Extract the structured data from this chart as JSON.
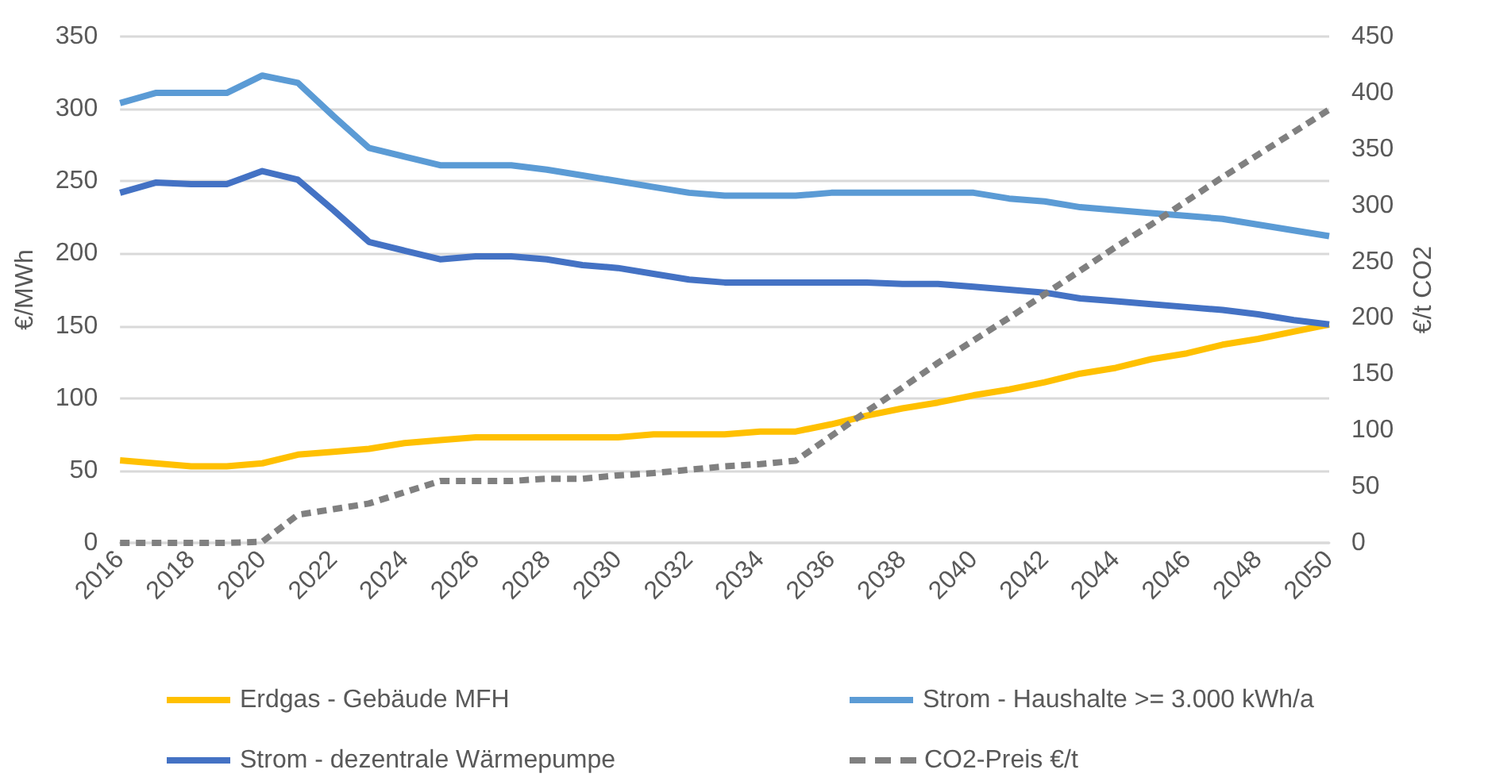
{
  "chart_data": {
    "type": "line",
    "ylabel": "€/MWh",
    "y2label": "€/t CO2",
    "categories": [
      "2016",
      null,
      "2018",
      null,
      "2020",
      null,
      "2022",
      null,
      "2024",
      null,
      "2026",
      null,
      "2028",
      null,
      "2030",
      null,
      "2032",
      null,
      "2034",
      null,
      "2036",
      null,
      "2038",
      null,
      "2040",
      null,
      "2042",
      null,
      "2044",
      null,
      "2046",
      null,
      "2048",
      null,
      "2050"
    ],
    "series": [
      {
        "name": "Erdgas - Gebäude MFH",
        "color": "#ffc000",
        "values": [
          57,
          55,
          53,
          53,
          55,
          61,
          63,
          65,
          69,
          71,
          73,
          73,
          73,
          73,
          73,
          75,
          75,
          75,
          77,
          77,
          82,
          88,
          93,
          97,
          102,
          106,
          111,
          117,
          121,
          127,
          131,
          137,
          141,
          146,
          151
        ]
      },
      {
        "name": "Strom - Haushalte >= 3.000 kWh/a",
        "color": "#5b9bd5",
        "values": [
          304,
          311,
          311,
          311,
          323,
          318,
          295,
          273,
          267,
          261,
          261,
          261,
          258,
          254,
          250,
          246,
          242,
          240,
          240,
          240,
          242,
          242,
          242,
          242,
          242,
          238,
          236,
          232,
          230,
          228,
          226,
          224,
          220,
          216,
          212
        ]
      },
      {
        "name": "Strom - dezentrale Wärmepumpe",
        "color": "#4472c4",
        "values": [
          242,
          249,
          248,
          248,
          257,
          251,
          230,
          208,
          202,
          196,
          198,
          198,
          196,
          192,
          190,
          186,
          182,
          180,
          180,
          180,
          180,
          180,
          179,
          179,
          177,
          175,
          173,
          169,
          167,
          165,
          163,
          161,
          158,
          154,
          151
        ]
      },
      {
        "name": "CO2-Preis €/t",
        "color": "#808080",
        "axis": "y2",
        "line_style": "dashed",
        "values": [
          0,
          0,
          0,
          0,
          1,
          25,
          30,
          35,
          45,
          55,
          55,
          55,
          57,
          57,
          60,
          62,
          65,
          68,
          70,
          73,
          95,
          117,
          138,
          160,
          180,
          200,
          221,
          242,
          263,
          283,
          304,
          325,
          345,
          365,
          385
        ]
      }
    ],
    "ylim": [
      0,
      350
    ],
    "yticks": [
      0,
      50,
      100,
      150,
      200,
      250,
      300,
      350
    ],
    "y2lim": [
      0,
      450
    ],
    "y2ticks": [
      0,
      50,
      100,
      150,
      200,
      250,
      300,
      350,
      400,
      450
    ],
    "grid": "y",
    "legend": "bottom",
    "marker": "none",
    "line_style": "solid"
  }
}
